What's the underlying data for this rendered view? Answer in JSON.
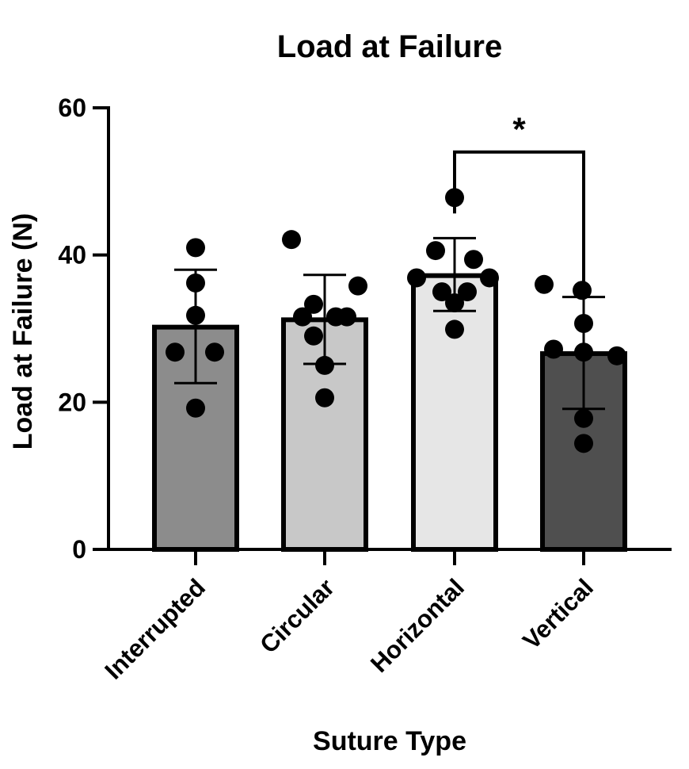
{
  "chart_data": {
    "type": "bar",
    "title": "Load at Failure",
    "xlabel": "Suture Type",
    "ylabel": "Load at Failure (N)",
    "ylim": [
      0,
      60
    ],
    "yticks": [
      0,
      20,
      40,
      60
    ],
    "grid": false,
    "categories": [
      "Interrupted",
      "Circular",
      "Horizontal",
      "Vertical"
    ],
    "values": [
      30.2,
      31.2,
      37.2,
      26.6
    ],
    "error_bars": [
      {
        "low": 22.6,
        "high": 38.0
      },
      {
        "low": 25.2,
        "high": 37.3
      },
      {
        "low": 32.4,
        "high": 42.3
      },
      {
        "low": 19.1,
        "high": 34.3
      }
    ],
    "points": [
      [
        41.0,
        36.2,
        31.8,
        26.8,
        26.8,
        19.2
      ],
      [
        42.1,
        35.8,
        33.3,
        31.6,
        31.6,
        31.6,
        29.0,
        25.0,
        20.6
      ],
      [
        47.8,
        40.6,
        39.4,
        36.9,
        36.9,
        35.0,
        35.0,
        33.5,
        29.9
      ],
      [
        36.0,
        35.2,
        30.7,
        27.2,
        26.8,
        26.3,
        17.8,
        14.4
      ]
    ],
    "fill_colors": [
      "#8c8c8c",
      "#c8c8c8",
      "#e6e6e6",
      "#4f4f4f"
    ],
    "significance": [
      {
        "from": "Horizontal",
        "to": "Vertical",
        "label": "*",
        "level": 54
      }
    ]
  }
}
